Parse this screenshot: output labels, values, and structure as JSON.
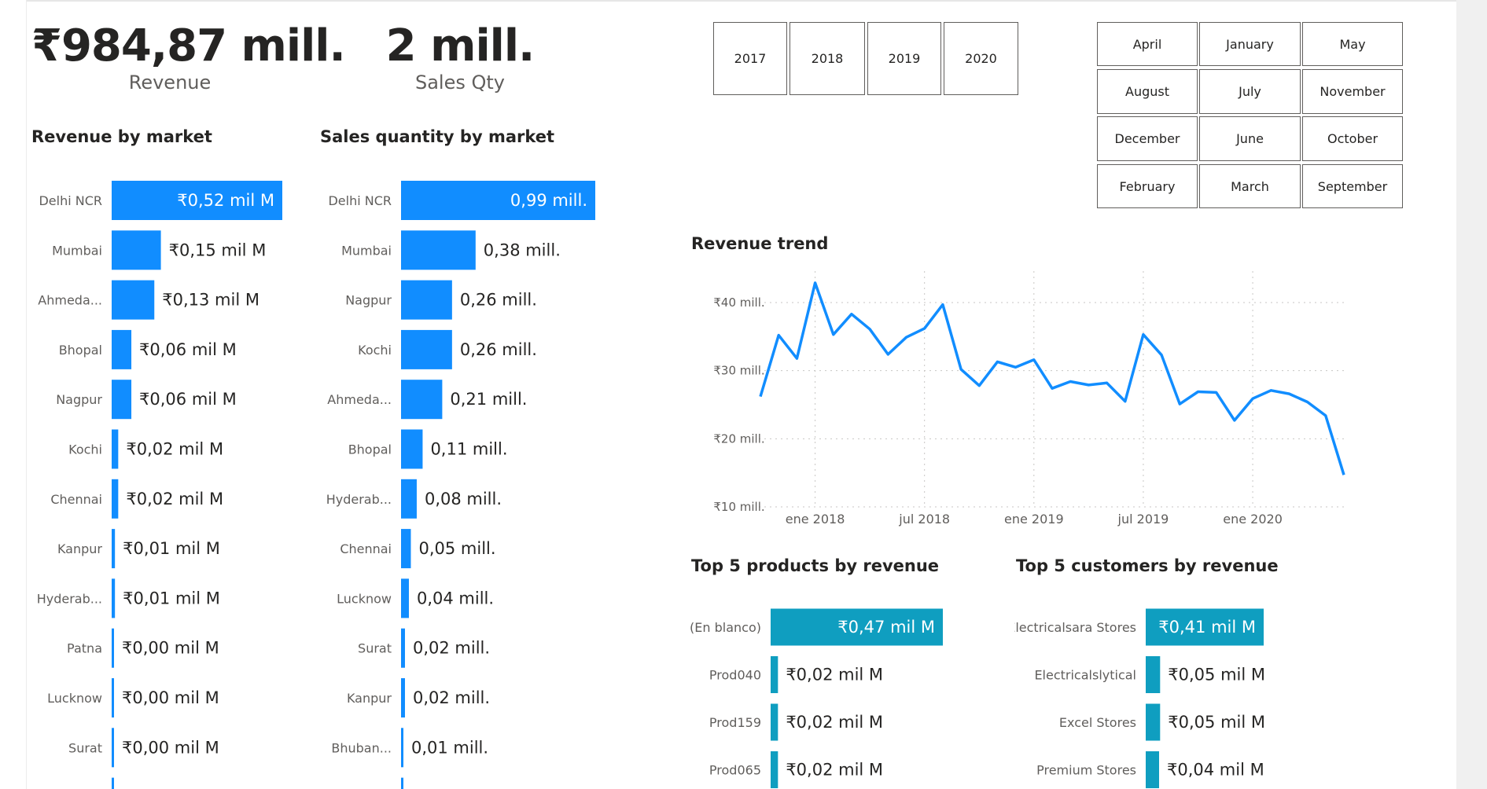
{
  "kpis": {
    "revenue": {
      "value": "₹984,87 mill.",
      "label": "Revenue"
    },
    "sales_qty": {
      "value": "2 mill.",
      "label": "Sales Qty"
    }
  },
  "slicers": {
    "years": [
      "2017",
      "2018",
      "2019",
      "2020"
    ],
    "months": [
      "April",
      "January",
      "May",
      "August",
      "July",
      "November",
      "December",
      "June",
      "October",
      "February",
      "March",
      "September"
    ]
  },
  "colors": {
    "bar_blue": "#118dff",
    "bar_teal": "#0f9ec0",
    "line_blue": "#118dff"
  },
  "chart_data": [
    {
      "type": "bar",
      "orientation": "horizontal",
      "title": "Revenue by market",
      "categories": [
        "Delhi NCR",
        "Mumbai",
        "Ahmeda...",
        "Bhopal",
        "Nagpur",
        "Kochi",
        "Chennai",
        "Kanpur",
        "Hyderab...",
        "Patna",
        "Lucknow",
        "Surat"
      ],
      "values": [
        0.52,
        0.15,
        0.13,
        0.06,
        0.06,
        0.02,
        0.02,
        0.01,
        0.01,
        0.0,
        0.0,
        0.0
      ],
      "labels": [
        "₹0,52 mil M",
        "₹0,15 mil M",
        "₹0,13 mil M",
        "₹0,06 mil M",
        "₹0,06 mil M",
        "₹0,02 mil M",
        "₹0,02 mil M",
        "₹0,01 mil M",
        "₹0,01 mil M",
        "₹0,00 mil M",
        "₹0,00 mil M",
        "₹0,00 mil M"
      ]
    },
    {
      "type": "bar",
      "orientation": "horizontal",
      "title": "Sales quantity by market",
      "categories": [
        "Delhi NCR",
        "Mumbai",
        "Nagpur",
        "Kochi",
        "Ahmeda...",
        "Bhopal",
        "Hyderab...",
        "Chennai",
        "Lucknow",
        "Surat",
        "Kanpur",
        "Bhuban..."
      ],
      "values": [
        0.99,
        0.38,
        0.26,
        0.26,
        0.21,
        0.11,
        0.08,
        0.05,
        0.04,
        0.02,
        0.02,
        0.01
      ],
      "labels": [
        "0,99 mill.",
        "0,38 mill.",
        "0,26 mill.",
        "0,26 mill.",
        "0,21 mill.",
        "0,11 mill.",
        "0,08 mill.",
        "0,05 mill.",
        "0,04 mill.",
        "0,02 mill.",
        "0,02 mill.",
        "0,01 mill."
      ]
    },
    {
      "type": "line",
      "title": "Revenue trend",
      "x_tick_labels": [
        "ene 2018",
        "jul 2018",
        "ene 2019",
        "jul 2019",
        "ene 2020"
      ],
      "y_tick_labels": [
        "₹10 mill.",
        "₹20 mill.",
        "₹30 mill.",
        "₹40 mill."
      ],
      "ylim": [
        10,
        40
      ],
      "grid": true,
      "series": [
        {
          "values": [
            26.2,
            35.2,
            31.8,
            42.9,
            35.3,
            38.3,
            36.1,
            32.4,
            34.9,
            36.2,
            39.7,
            30.2,
            27.8,
            31.3,
            30.5,
            31.6,
            27.4,
            28.4,
            27.9,
            28.2,
            25.5,
            35.3,
            32.3,
            25.1,
            26.9,
            26.8,
            22.7,
            25.9,
            27.1,
            26.6,
            25.4,
            23.4,
            14.7
          ]
        }
      ]
    },
    {
      "type": "bar",
      "orientation": "horizontal",
      "title": "Top 5 products by revenue",
      "categories": [
        "(En blanco)",
        "Prod040",
        "Prod159",
        "Prod065"
      ],
      "values": [
        0.47,
        0.02,
        0.02,
        0.02
      ],
      "labels": [
        "₹0,47 mil M",
        "₹0,02 mil M",
        "₹0,02 mil M",
        "₹0,02 mil M"
      ]
    },
    {
      "type": "bar",
      "orientation": "horizontal",
      "title": "Top 5 customers by revenue",
      "categories": [
        "Electricalsara Stores",
        "Electricalslytical",
        "Excel Stores",
        "Premium Stores"
      ],
      "values": [
        0.41,
        0.05,
        0.05,
        0.04
      ],
      "labels": [
        "₹0,41 mil M",
        "₹0,05 mil M",
        "₹0,05 mil M",
        "₹0,04 mil M"
      ]
    }
  ]
}
